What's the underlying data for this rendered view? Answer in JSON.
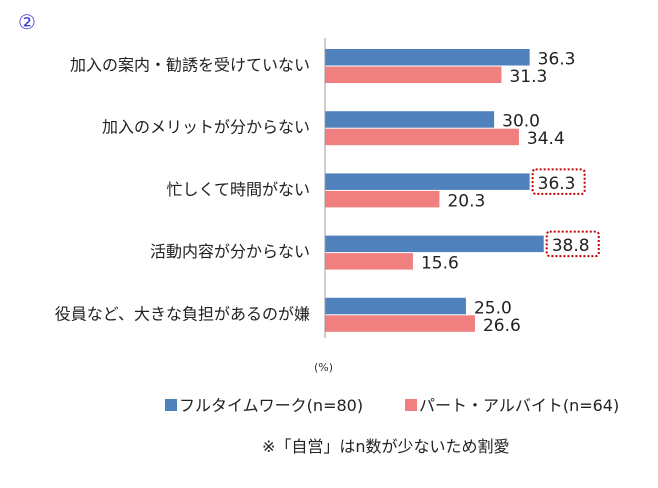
{
  "panel_marker": "②",
  "chart_data": {
    "type": "bar",
    "orientation": "horizontal",
    "categories": [
      "加入の案内・勧誘を受けていない",
      "加入のメリットが分からない",
      "忙しくて時間がない",
      "活動内容が分からない",
      "役員など、大きな負担があるのが嫌"
    ],
    "series": [
      {
        "name": "フルタイムワーク(n=80)",
        "color": "#4f81bd",
        "values": [
          36.3,
          30.0,
          36.3,
          38.8,
          25.0
        ],
        "labels": [
          "36.3",
          "30.0",
          "36.3",
          "38.8",
          "25.0"
        ]
      },
      {
        "name": "パート・アルバイト(n=64)",
        "color": "#f08080",
        "values": [
          31.3,
          34.4,
          20.3,
          15.6,
          26.6
        ],
        "labels": [
          "31.3",
          "34.4",
          "20.3",
          "15.6",
          "26.6"
        ]
      }
    ],
    "highlighted": [
      {
        "series": 0,
        "category": 2
      },
      {
        "series": 0,
        "category": 3
      }
    ],
    "highlight_color": "#c00000",
    "unit_label": "(%)",
    "xlim": [
      0,
      40
    ],
    "grid": false,
    "legend_position": "bottom",
    "note": "※「自営」はn数が少ないため割愛"
  }
}
